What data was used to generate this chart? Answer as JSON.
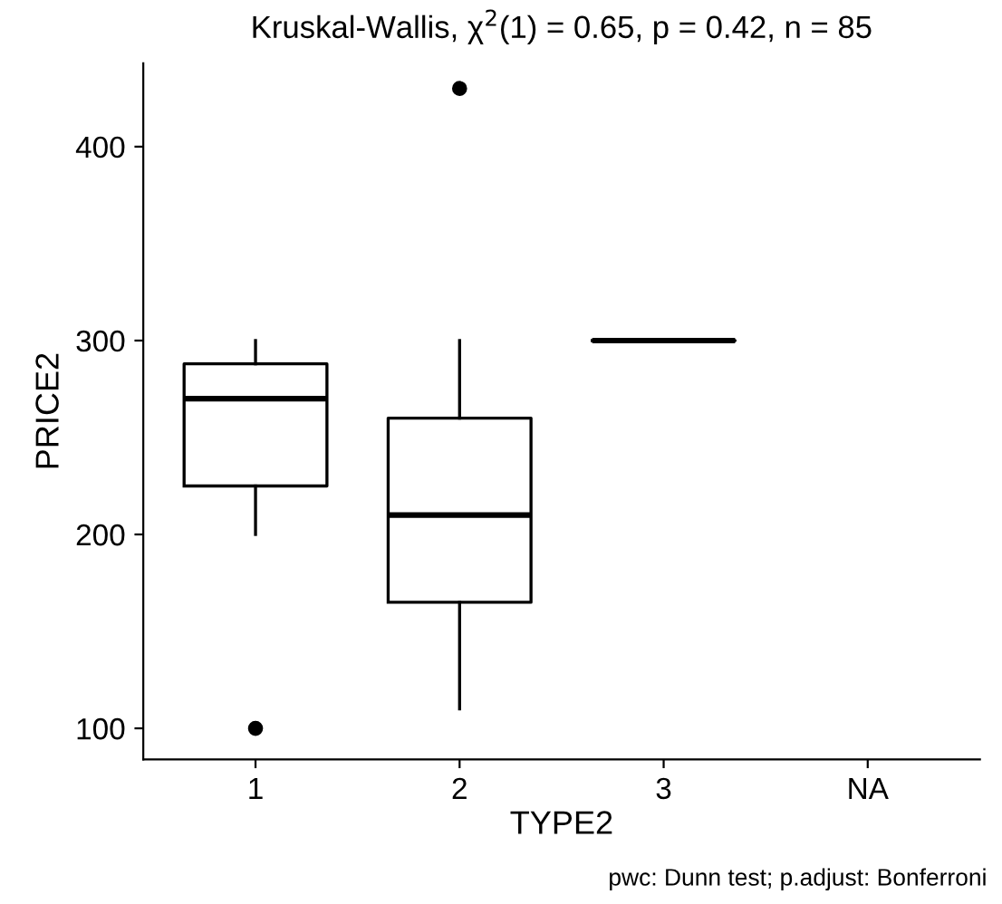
{
  "chart_data": {
    "type": "box",
    "title": "Kruskal-Wallis, χ$^{2}$(1) = 0.65, p = 0.42, n = 85",
    "xlabel": "TYPE2",
    "ylabel": "PRICE2",
    "categories": [
      "1",
      "2",
      "3",
      "NA"
    ],
    "boxes": [
      {
        "low": 200,
        "q1": 225,
        "median": 270,
        "q3": 288,
        "high": 300,
        "outliers": [
          100
        ]
      },
      {
        "low": 110,
        "q1": 165,
        "median": 210,
        "q3": 260,
        "high": 300,
        "outliers": [
          430
        ]
      },
      {
        "low": 300,
        "q1": 300,
        "median": 300,
        "q3": 300,
        "high": 300
      },
      null
    ],
    "ylim": [
      84,
      443
    ],
    "yticks": [
      100,
      200,
      300,
      400
    ],
    "annotations": [
      "pwc: Dunn test; p.adjust: Bonferroni"
    ]
  }
}
